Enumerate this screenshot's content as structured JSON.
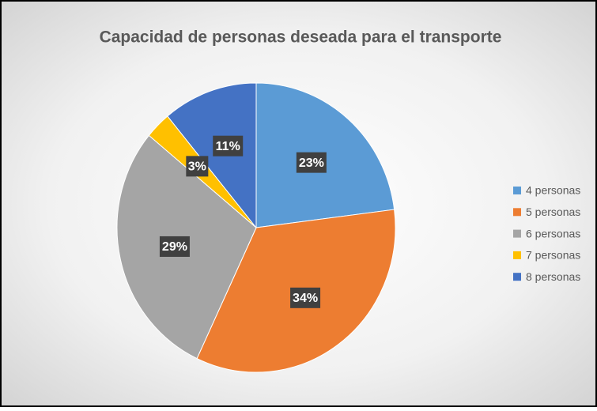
{
  "chart_data": {
    "type": "pie",
    "title": "Capacidad de personas deseada para el transporte",
    "categories": [
      "4 personas",
      "5 personas",
      "6 personas",
      "7 personas",
      "8 personas"
    ],
    "values": [
      23,
      34,
      29,
      3,
      11
    ],
    "value_labels": [
      "23%",
      "34%",
      "29%",
      "3%",
      "11%"
    ],
    "colors": [
      "#5b9bd5",
      "#ed7d31",
      "#a5a5a5",
      "#ffc000",
      "#4472c4"
    ],
    "legend": "right"
  }
}
